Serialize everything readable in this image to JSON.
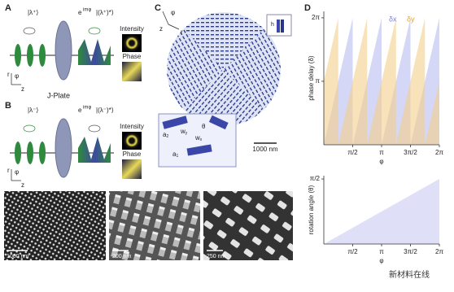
{
  "panels": {
    "labels": [
      "A",
      "B",
      "C",
      "D",
      "E",
      "F",
      "G"
    ]
  },
  "panel_a": {
    "input": "|λ⁺⟩",
    "phase_factor": "e",
    "phase_exponent": "imφ",
    "output": "|(λ⁺)*⟩",
    "intensity": "Intensity",
    "phase": "Phase",
    "axes": [
      "r",
      "φ",
      "z"
    ],
    "plate": "J-Plate"
  },
  "panel_b": {
    "input": "|λ⁻⟩",
    "phase_factor": "e",
    "phase_exponent": "imφ",
    "output": "|(λ⁻)*⟩",
    "intensity": "Intensity",
    "phase": "Phase",
    "axes": [
      "r",
      "φ",
      "z"
    ]
  },
  "panel_c": {
    "axes": [
      "φ",
      "z",
      "r"
    ],
    "pillar_height": "h",
    "scale_bar": "1000 nm",
    "inset_labels": [
      {
        "base": "a",
        "sub": "2"
      },
      {
        "base": "w",
        "sub": "y"
      },
      {
        "base": "w",
        "sub": "x"
      },
      {
        "base": "θ",
        "sub": ""
      },
      {
        "base": "a",
        "sub": "1"
      }
    ]
  },
  "panel_e": {
    "scale_bar": "1000 nm"
  },
  "panel_f": {
    "scale_bar": "200 nm"
  },
  "panel_g": {
    "scale_bar": "250 nm"
  },
  "watermark": "新材料在线",
  "chart_data": [
    {
      "type": "area",
      "y_label": "phase delay (δ)",
      "x_label": "φ",
      "x": [
        0,
        0.7854,
        0.7854,
        1.5708,
        1.5708,
        2.3562,
        2.3562,
        3.1416,
        3.1416,
        3.927,
        3.927,
        4.7124,
        4.7124,
        5.4978,
        5.4978,
        6.2832
      ],
      "series": [
        {
          "name": "δx",
          "color": "#b9bdf0",
          "values": [
            0,
            3.1416,
            3.1416,
            6.2832,
            0,
            3.1416,
            3.1416,
            6.2832,
            0,
            3.1416,
            3.1416,
            6.2832,
            0,
            3.1416,
            3.1416,
            6.2832
          ]
        },
        {
          "name": "δy",
          "color": "#f3cf8a",
          "values": [
            3.1416,
            6.2832,
            0,
            3.1416,
            3.1416,
            6.2832,
            0,
            3.1416,
            3.1416,
            6.2832,
            0,
            3.1416,
            3.1416,
            6.2832,
            0,
            3.1416
          ]
        }
      ],
      "xlim": [
        0,
        6.2832
      ],
      "ylim": [
        0,
        6.6
      ],
      "xticks": [
        {
          "value": 1.5708,
          "label": "π/2"
        },
        {
          "value": 3.1416,
          "label": "π"
        },
        {
          "value": 4.7124,
          "label": "3π/2"
        },
        {
          "value": 6.2832,
          "label": "2π"
        }
      ],
      "yticks": [
        {
          "value": 3.1416,
          "label": "π"
        },
        {
          "value": 6.2832,
          "label": "2π"
        }
      ],
      "legend": "top"
    },
    {
      "type": "area",
      "y_label": "rotation angle (θ)",
      "x_label": "φ",
      "x": [
        0,
        6.2832
      ],
      "series": [
        {
          "color": "#c9ccf2",
          "values": [
            0,
            1.5708
          ]
        }
      ],
      "xlim": [
        0,
        6.2832
      ],
      "ylim": [
        0,
        1.65
      ],
      "xticks": [
        {
          "value": 1.5708,
          "label": "π/2"
        },
        {
          "value": 3.1416,
          "label": "π"
        },
        {
          "value": 4.7124,
          "label": "3π/2"
        },
        {
          "value": 6.2832,
          "label": "2π"
        }
      ],
      "yticks": [
        {
          "value": 1.5708,
          "label": "π/2"
        }
      ]
    }
  ]
}
